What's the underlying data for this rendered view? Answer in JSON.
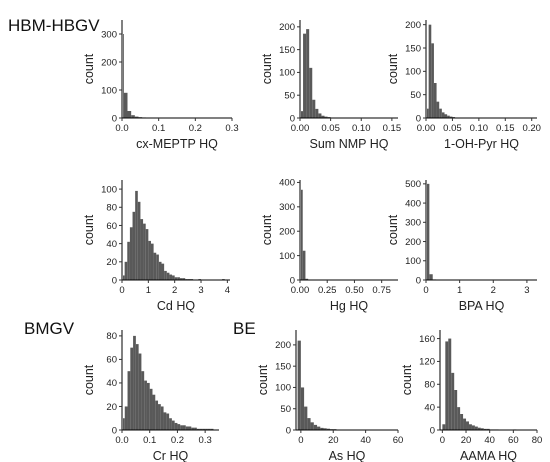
{
  "group_labels": [
    "HBM-HBGV",
    "BMGV",
    "BE"
  ],
  "chart_data": [
    {
      "type": "bar",
      "xlabel": "cx-MEPTP HQ",
      "ylabel": "count",
      "xlim": [
        0,
        0.3
      ],
      "ylim": [
        0,
        350
      ],
      "xticks": [
        0,
        0.1,
        0.2,
        0.3
      ],
      "xtick_labels": [
        "0.0",
        "0.1",
        "0.2",
        "0.3"
      ],
      "yticks": [
        0,
        100,
        200,
        300
      ],
      "ytick_labels": [
        "0",
        "100",
        "200",
        "300"
      ],
      "bin_width": 0.01,
      "bin_start": -0.005,
      "values": [
        300,
        90,
        25,
        10,
        5,
        3,
        2,
        1,
        1,
        1,
        0,
        0,
        0,
        0,
        0,
        0,
        0,
        0,
        0,
        0,
        0,
        0,
        0,
        0,
        0,
        0,
        0,
        0,
        1
      ]
    },
    {
      "type": "bar",
      "xlabel": "Sum NMP HQ",
      "ylabel": "count",
      "xlim": [
        0,
        0.16
      ],
      "ylim": [
        0,
        215
      ],
      "xticks": [
        0,
        0.05,
        0.1,
        0.15
      ],
      "xtick_labels": [
        "0.00",
        "0.05",
        "0.10",
        "0.15"
      ],
      "yticks": [
        0,
        50,
        100,
        150,
        200
      ],
      "ytick_labels": [
        "0",
        "50",
        "100",
        "150",
        "200"
      ],
      "bin_width": 0.005,
      "bin_start": 0,
      "values": [
        15,
        185,
        195,
        110,
        40,
        20,
        10,
        5,
        3,
        2,
        1,
        1,
        0,
        0,
        0,
        0,
        0,
        0,
        0,
        0,
        0,
        0,
        0,
        0,
        0,
        0,
        0,
        0,
        0,
        0,
        0,
        1
      ]
    },
    {
      "type": "bar",
      "xlabel": "1-OH-Pyr HQ",
      "ylabel": "count",
      "xlim": [
        0,
        0.21
      ],
      "ylim": [
        0,
        210
      ],
      "xticks": [
        0,
        0.05,
        0.1,
        0.15,
        0.2
      ],
      "xtick_labels": [
        "0.00",
        "0.05",
        "0.10",
        "0.15",
        "0.20"
      ],
      "yticks": [
        0,
        50,
        100,
        150,
        200
      ],
      "ytick_labels": [
        "0",
        "50",
        "100",
        "150",
        "200"
      ],
      "bin_width": 0.005,
      "bin_start": 0,
      "values": [
        20,
        200,
        160,
        75,
        35,
        20,
        12,
        8,
        5,
        3,
        2,
        1,
        1,
        0,
        0,
        0,
        0,
        0,
        0,
        0,
        0,
        0,
        0,
        0,
        0,
        0,
        0,
        0,
        0,
        0,
        0,
        0,
        0,
        0,
        0,
        0,
        0,
        0,
        0,
        0,
        1
      ]
    },
    {
      "type": "bar",
      "xlabel": "Cd HQ",
      "ylabel": "count",
      "xlim": [
        0,
        4.1
      ],
      "ylim": [
        0,
        110
      ],
      "xticks": [
        0,
        1,
        2,
        3,
        4
      ],
      "xtick_labels": [
        "0",
        "1",
        "2",
        "3",
        "4"
      ],
      "yticks": [
        0,
        20,
        40,
        60,
        80,
        100
      ],
      "ytick_labels": [
        "0",
        "20",
        "40",
        "60",
        "80",
        "100"
      ],
      "bin_width": 0.1,
      "bin_start": 0,
      "values": [
        5,
        20,
        42,
        58,
        75,
        98,
        86,
        67,
        62,
        56,
        43,
        40,
        30,
        28,
        20,
        18,
        10,
        8,
        6,
        5,
        3,
        3,
        2,
        2,
        1,
        1,
        1,
        0,
        0,
        1,
        0,
        0,
        0,
        0,
        0,
        0,
        0,
        0,
        1
      ]
    },
    {
      "type": "bar",
      "xlabel": "Hg HQ",
      "ylabel": "count",
      "xlim": [
        0,
        0.9
      ],
      "ylim": [
        0,
        410
      ],
      "xticks": [
        0,
        0.25,
        0.5,
        0.75
      ],
      "xtick_labels": [
        "0.00",
        "0.25",
        "0.50",
        "0.75"
      ],
      "yticks": [
        0,
        100,
        200,
        300,
        400
      ],
      "ytick_labels": [
        "0",
        "100",
        "200",
        "300",
        "400"
      ],
      "bin_width": 0.025,
      "bin_start": 0,
      "values": [
        370,
        120,
        5,
        2,
        1,
        0,
        0,
        0,
        0,
        0,
        0,
        0,
        0,
        0,
        0,
        0,
        0,
        0,
        0,
        0,
        0,
        0,
        0,
        0,
        0,
        0,
        0,
        0,
        0,
        0,
        0,
        0,
        0,
        0,
        1
      ]
    },
    {
      "type": "bar",
      "xlabel": "BPA HQ",
      "ylabel": "count",
      "xlim": [
        0,
        3.3
      ],
      "ylim": [
        0,
        520
      ],
      "xticks": [
        0,
        1,
        2,
        3
      ],
      "xtick_labels": [
        "0",
        "1",
        "2",
        "3"
      ],
      "yticks": [
        0,
        100,
        200,
        300,
        400,
        500
      ],
      "ytick_labels": [
        "0",
        "100",
        "200",
        "300",
        "400",
        "500"
      ],
      "bin_width": 0.1,
      "bin_start": 0,
      "values": [
        500,
        30,
        3,
        2,
        0,
        0,
        0,
        0,
        0,
        0,
        0,
        0,
        0,
        0,
        0,
        0,
        0,
        0,
        0,
        0,
        0,
        0,
        0,
        0,
        0,
        0,
        0,
        0,
        0,
        0,
        1
      ]
    },
    {
      "type": "bar",
      "xlabel": "Cr HQ",
      "ylabel": "count",
      "xlim": [
        0,
        0.35
      ],
      "ylim": [
        0,
        85
      ],
      "xticks": [
        0,
        0.1,
        0.2,
        0.3
      ],
      "xtick_labels": [
        "0.0",
        "0.1",
        "0.2",
        "0.3"
      ],
      "yticks": [
        0,
        20,
        40,
        60,
        80
      ],
      "ytick_labels": [
        "0",
        "20",
        "40",
        "60",
        "80"
      ],
      "bin_width": 0.01,
      "bin_start": 0,
      "values": [
        10,
        20,
        50,
        70,
        80,
        73,
        65,
        50,
        42,
        40,
        35,
        30,
        25,
        22,
        20,
        15,
        14,
        10,
        8,
        6,
        5,
        4,
        4,
        3,
        3,
        2,
        2,
        1,
        1,
        1,
        1,
        1,
        1,
        0
      ]
    },
    {
      "type": "bar",
      "xlabel": "As HQ",
      "ylabel": "count",
      "xlim": [
        -3,
        60
      ],
      "ylim": [
        0,
        235
      ],
      "xticks": [
        0,
        20,
        40,
        60
      ],
      "xtick_labels": [
        "0",
        "20",
        "40",
        "60"
      ],
      "yticks": [
        0,
        50,
        100,
        150,
        200
      ],
      "ytick_labels": [
        "0",
        "50",
        "100",
        "150",
        "200"
      ],
      "bin_width": 2,
      "bin_start": -2,
      "values": [
        210,
        100,
        55,
        28,
        18,
        12,
        8,
        5,
        4,
        3,
        2,
        2,
        1,
        1,
        1,
        0,
        0,
        0,
        0,
        0,
        0,
        0,
        0,
        1
      ]
    },
    {
      "type": "bar",
      "xlabel": "AAMA HQ",
      "ylabel": "count",
      "xlim": [
        -2,
        80
      ],
      "ylim": [
        0,
        175
      ],
      "xticks": [
        0,
        20,
        40,
        60,
        80
      ],
      "xtick_labels": [
        "0",
        "20",
        "40",
        "60",
        "80"
      ],
      "yticks": [
        0,
        40,
        80,
        120,
        160
      ],
      "ytick_labels": [
        "0",
        "40",
        "80",
        "120",
        "160"
      ],
      "bin_width": 2.5,
      "bin_start": 0,
      "values": [
        10,
        155,
        160,
        100,
        70,
        40,
        28,
        20,
        15,
        10,
        8,
        6,
        4,
        3,
        2,
        2,
        1,
        1,
        1,
        0,
        0,
        0,
        0,
        0,
        1
      ]
    }
  ]
}
